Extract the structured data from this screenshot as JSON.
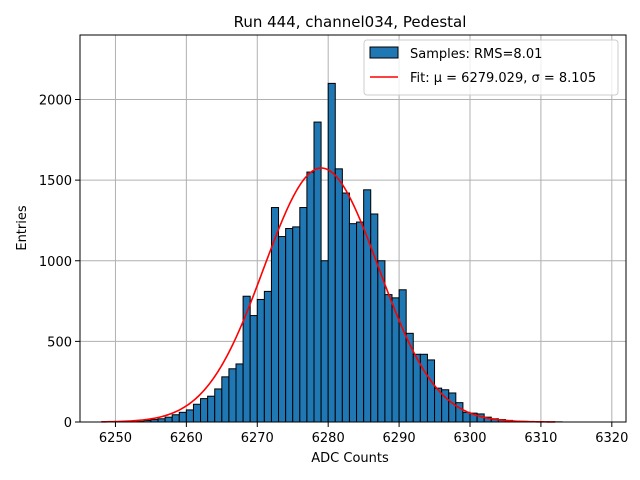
{
  "chart_data": {
    "type": "bar",
    "title": "Run 444, channel034, Pedestal",
    "xlabel": "ADC Counts",
    "ylabel": "Entries",
    "xlim": [
      6245,
      6322
    ],
    "ylim": [
      0,
      2400
    ],
    "xticks": [
      6250,
      6260,
      6270,
      6280,
      6290,
      6300,
      6310,
      6320
    ],
    "yticks": [
      0,
      500,
      1000,
      1500,
      2000
    ],
    "grid": true,
    "legend_position": "top-right",
    "histogram": {
      "name": "Samples: RMS=8.01",
      "color": "#1f77b4",
      "bin_start": 6253,
      "bin_width": 1,
      "counts": [
        4,
        10,
        15,
        20,
        30,
        45,
        60,
        75,
        110,
        145,
        160,
        205,
        280,
        330,
        360,
        780,
        660,
        760,
        810,
        1330,
        1150,
        1200,
        1210,
        1330,
        1550,
        1860,
        1000,
        2100,
        1570,
        1420,
        1230,
        1240,
        1440,
        1290,
        1000,
        790,
        770,
        820,
        550,
        420,
        420,
        385,
        210,
        200,
        180,
        120,
        60,
        55,
        50,
        30,
        20,
        15,
        10,
        6,
        4,
        3,
        2,
        1,
        1,
        1
      ]
    },
    "fit": {
      "name": "Fit: μ = 6279.029, σ = 8.105",
      "color": "#ff0000",
      "mu": 6279.029,
      "sigma": 8.105,
      "amplitude": 1575,
      "x_range": [
        6248,
        6312
      ]
    }
  }
}
